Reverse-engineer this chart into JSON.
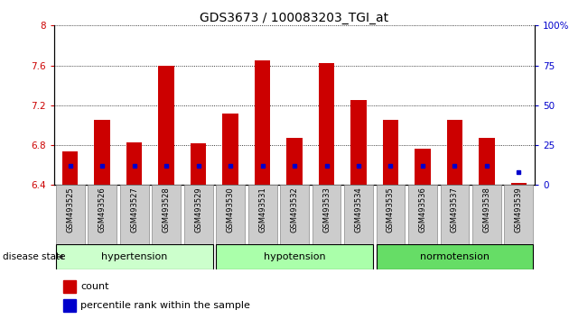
{
  "title": "GDS3673 / 100083203_TGI_at",
  "samples": [
    "GSM493525",
    "GSM493526",
    "GSM493527",
    "GSM493528",
    "GSM493529",
    "GSM493530",
    "GSM493531",
    "GSM493532",
    "GSM493533",
    "GSM493534",
    "GSM493535",
    "GSM493536",
    "GSM493537",
    "GSM493538",
    "GSM493539"
  ],
  "count_values": [
    6.74,
    7.05,
    6.83,
    7.6,
    6.82,
    7.12,
    7.65,
    6.87,
    7.62,
    7.25,
    7.05,
    6.76,
    7.05,
    6.87,
    6.42
  ],
  "percentile_values": [
    12,
    12,
    12,
    12,
    12,
    12,
    12,
    12,
    12,
    12,
    12,
    12,
    12,
    12,
    8
  ],
  "bar_bottom": 6.4,
  "ylim_left": [
    6.4,
    8.0
  ],
  "ylim_right": [
    0,
    100
  ],
  "yticks_left": [
    6.4,
    6.8,
    7.2,
    7.6,
    8.0
  ],
  "yticks_right": [
    0,
    25,
    50,
    75,
    100
  ],
  "ytick_labels_left": [
    "6.4",
    "6.8",
    "7.2",
    "7.6",
    "8"
  ],
  "ytick_labels_right": [
    "0",
    "25",
    "50",
    "75",
    "100%"
  ],
  "bar_color": "#cc0000",
  "percentile_color": "#0000cc",
  "group_ranges": [
    [
      0,
      4
    ],
    [
      5,
      9
    ],
    [
      10,
      14
    ]
  ],
  "group_labels": [
    "hypertension",
    "hypotension",
    "normotension"
  ],
  "group_colors": [
    "#ccffcc",
    "#aaffaa",
    "#66dd66"
  ],
  "disease_state_label": "disease state",
  "legend_count_label": "count",
  "legend_percentile_label": "percentile rank within the sample",
  "background_color": "#ffffff",
  "tick_label_color_left": "#cc0000",
  "tick_label_color_right": "#0000cc",
  "label_bg_color": "#cccccc"
}
